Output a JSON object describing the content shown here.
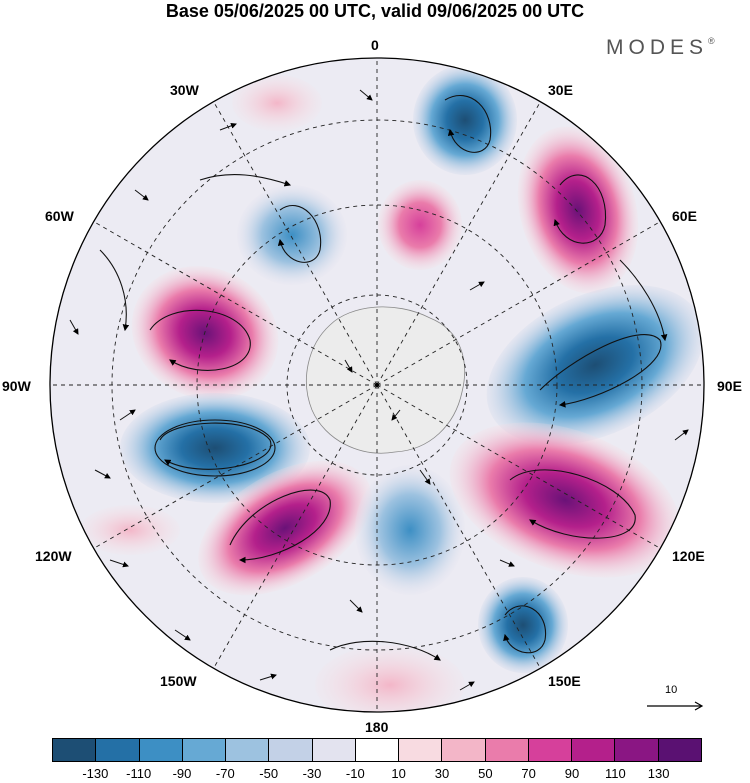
{
  "title": "Base 05/06/2025 00 UTC, valid 09/06/2025 00 UTC",
  "brand": "MODES",
  "brand_mark": "®",
  "longitude_labels": {
    "top": "0",
    "right": "90E",
    "bottom": "180",
    "left": "90W",
    "ne30": "30E",
    "ne60": "60E",
    "se120": "120E",
    "se150": "150E",
    "sw150": "150W",
    "sw120": "120W",
    "nw60": "60W",
    "nw30": "30W"
  },
  "reference_vector_label": "10",
  "colorbar": {
    "colors": [
      "#1d4e74",
      "#2470a6",
      "#3d8fc4",
      "#66a9d4",
      "#9dc2e0",
      "#c3d1e7",
      "#e3e3ef",
      "#ffffff",
      "#f8dbe1",
      "#f3b6c8",
      "#ea7cab",
      "#d6409b",
      "#b4208b",
      "#8a1683",
      "#5a1172"
    ],
    "tick_labels": [
      "-130",
      "-110",
      "-90",
      "-70",
      "-50",
      "-30",
      "-10",
      "10",
      "30",
      "50",
      "70",
      "90",
      "110",
      "130"
    ]
  },
  "icons": {
    "north_pole": "antarctica-landmass"
  }
}
